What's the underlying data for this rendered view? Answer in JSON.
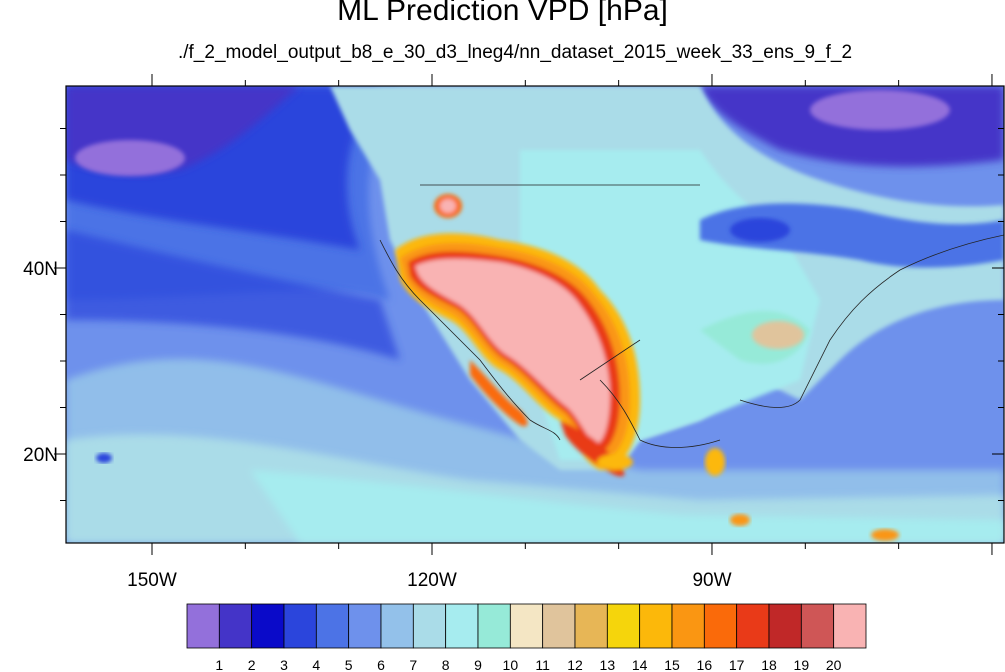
{
  "title": "ML Prediction VPD [hPa]",
  "subtitle": "./f_2_model_output_b8_e_30_d3_lneg4/nn_dataset_2015_week_33_ens_9_f_2",
  "axes": {
    "x_ticks": [
      "150W",
      "120W",
      "90W"
    ],
    "y_ticks": [
      "40N",
      "20N"
    ]
  },
  "colorbar": {
    "labels": [
      "1",
      "2",
      "3",
      "4",
      "5",
      "6",
      "7",
      "8",
      "9",
      "10",
      "11",
      "12",
      "13",
      "14",
      "15",
      "16",
      "17",
      "18",
      "19",
      "20"
    ],
    "colors": [
      "#9370db",
      "#4434c8",
      "#0a0ac9",
      "#2b45dc",
      "#4c73e6",
      "#6e91ec",
      "#93c1ea",
      "#aadce8",
      "#a6ecef",
      "#96ead8",
      "#f4e6c4",
      "#e0c49c",
      "#e7b656",
      "#f5d50c",
      "#fcb80a",
      "#fa9612",
      "#fa6a0a",
      "#e93a18",
      "#c02828",
      "#cf5656",
      "#f9b3b3"
    ]
  },
  "map": {
    "ocean_color": "#6e91ec",
    "land_base_color": "#a6ecef",
    "hot_color": "#f9b3b3"
  }
}
